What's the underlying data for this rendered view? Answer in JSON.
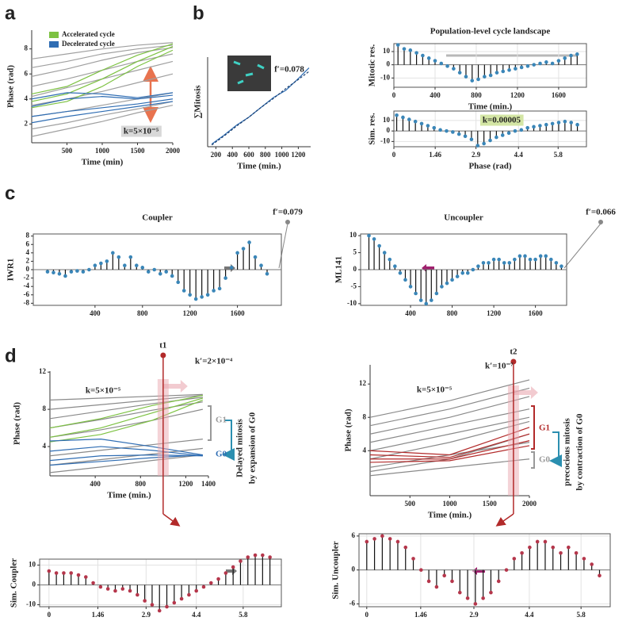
{
  "chart_data": [
    {
      "type": "line",
      "panel": "a",
      "xlabel": "Time (min)",
      "ylabel": "Phase (rad)",
      "xlim": [
        0,
        2000
      ],
      "ylim": [
        0.5,
        9.5
      ],
      "xticks": [
        500,
        1000,
        1500,
        2000
      ],
      "yticks": [
        2,
        4,
        6,
        8
      ],
      "legend": "top-left",
      "annotations": [
        "k=5×10⁻⁵"
      ],
      "x": [
        0,
        500,
        1000,
        1500,
        2000
      ],
      "series": [
        {
          "color": "#a0a0a0",
          "values": [
            7.2,
            7.6,
            8.0,
            8.3,
            8.5
          ]
        },
        {
          "color": "#a0a0a0",
          "values": [
            6.5,
            7.0,
            7.6,
            8.0,
            8.3
          ]
        },
        {
          "color": "#a0a0a0",
          "values": [
            5.8,
            6.4,
            7.1,
            7.7,
            8.1
          ]
        },
        {
          "color": "#a0a0a0",
          "values": [
            5,
            5.6,
            6.3,
            7,
            7.6
          ]
        },
        {
          "color": "#a0a0a0",
          "values": [
            4.2,
            4.9,
            5.6,
            6.3,
            7
          ]
        },
        {
          "color": "#a0a0a0",
          "values": [
            3.5,
            4,
            4.6,
            5.3,
            6
          ]
        },
        {
          "color": "#a0a0a0",
          "values": [
            2.6,
            3,
            3.5,
            4,
            4.5
          ]
        },
        {
          "color": "#a0a0a0",
          "values": [
            1.6,
            2.1,
            2.7,
            3.2,
            3.8
          ]
        },
        {
          "color": "#a0a0a0",
          "values": [
            1.0,
            1.6,
            2.2,
            2.9,
            3.5
          ]
        },
        {
          "name": "Accelerated cycle",
          "color": "#7dc242",
          "values": [
            3.8,
            4.4,
            5.6,
            7,
            8.2
          ]
        },
        {
          "color": "#7dc242",
          "values": [
            3.3,
            3.8,
            5,
            6.6,
            7.9
          ]
        },
        {
          "color": "#7dc242",
          "values": [
            4.4,
            5,
            6.3,
            7.5,
            8.4
          ]
        },
        {
          "name": "Decelerated cycle",
          "color": "#2f6db3",
          "values": [
            3.4,
            4,
            4.2,
            4,
            4.3
          ]
        },
        {
          "color": "#2f6db3",
          "values": [
            2.6,
            3,
            3.3,
            3.6,
            4
          ]
        },
        {
          "color": "#2f6db3",
          "values": [
            2.1,
            2.6,
            3,
            3.4,
            3.8
          ]
        },
        {
          "color": "#2f6db3",
          "values": [
            4.0,
            4.5,
            4.4,
            4.1,
            4.5
          ]
        }
      ]
    },
    {
      "type": "line",
      "panel": "b",
      "xlabel": "Time (min.)",
      "ylabel": "∑Mitosis",
      "xlim": [
        100,
        1350
      ],
      "ylim": [
        0,
        1
      ],
      "xticks": [
        200,
        400,
        600,
        800,
        1000,
        1200
      ],
      "yticks": [],
      "annotations": [
        "f′=0.078"
      ],
      "x": [
        150,
        300,
        450,
        600,
        750,
        900,
        1050,
        1200,
        1330
      ],
      "series": [
        {
          "color": "#2f6db3",
          "values": [
            0.03,
            0.13,
            0.24,
            0.33,
            0.44,
            0.55,
            0.63,
            0.76,
            0.88
          ]
        },
        {
          "color": "#1a3e6e",
          "dash": true,
          "values": [
            0.02,
            0.12,
            0.23,
            0.33,
            0.44,
            0.54,
            0.65,
            0.75,
            0.84
          ]
        }
      ]
    },
    {
      "type": "stem",
      "title": "Population-level cycle landscape",
      "xlabel": "Time (min.)",
      "ylabel": "Mitotic res.",
      "xlim": [
        0,
        1870
      ],
      "ylim": [
        -17,
        16
      ],
      "xticks": [
        0,
        400,
        800,
        1200,
        1600
      ],
      "yticks": [
        -10,
        0,
        10
      ],
      "grid": true,
      "color": "#3a86b8",
      "x": [
        40,
        100,
        160,
        220,
        280,
        340,
        400,
        460,
        520,
        580,
        640,
        700,
        760,
        820,
        880,
        940,
        1000,
        1060,
        1120,
        1180,
        1240,
        1300,
        1360,
        1420,
        1480,
        1540,
        1600,
        1660,
        1720,
        1780
      ],
      "values": [
        15,
        12,
        11,
        9,
        7,
        5,
        3,
        1,
        -1,
        -3,
        -6,
        -9,
        -12,
        -11,
        -9,
        -8,
        -6,
        -5,
        -4,
        -3,
        -2,
        -1,
        0,
        1,
        2,
        1,
        3,
        5,
        7,
        8
      ]
    },
    {
      "type": "stem",
      "xlabel": "Phase (rad)",
      "ylabel": "Sim. res.",
      "xlim": [
        0,
        6.8
      ],
      "ylim": [
        -15,
        19
      ],
      "xticks": [
        0,
        1.46,
        2.9,
        4.4,
        5.8
      ],
      "yticks": [
        -10,
        0,
        10
      ],
      "grid": true,
      "color": "#3a86b8",
      "annotations": [
        "k=0.00005"
      ],
      "x": [
        0.1,
        0.32,
        0.54,
        0.76,
        0.98,
        1.2,
        1.42,
        1.64,
        1.86,
        2.08,
        2.3,
        2.52,
        2.74,
        2.96,
        3.18,
        3.4,
        3.62,
        3.84,
        4.06,
        4.28,
        4.5,
        4.72,
        4.94,
        5.16,
        5.38,
        5.6,
        5.82,
        6.04,
        6.26,
        6.48
      ],
      "values": [
        15,
        13,
        11,
        9,
        7,
        5,
        3,
        1,
        0,
        -1,
        -3,
        -5,
        -8,
        -14,
        -12,
        -9,
        -6,
        -4,
        -2,
        0,
        1,
        3,
        4,
        5,
        6,
        7,
        8,
        9,
        8,
        6
      ]
    },
    {
      "type": "stem",
      "panel": "c",
      "title": "Coupler",
      "ylabel": "IWR1",
      "xlim": [
        -120,
        1970
      ],
      "ylim": [
        -8.5,
        8.5
      ],
      "xticks": [
        400,
        800,
        1200,
        1600
      ],
      "yticks": [
        -8,
        -6,
        -4,
        -2,
        0,
        2,
        4,
        6,
        8
      ],
      "color": "#3a86b8",
      "annotations": [
        "f′=0.079"
      ],
      "x": [
        0,
        50,
        100,
        150,
        200,
        250,
        300,
        350,
        400,
        450,
        500,
        550,
        600,
        650,
        700,
        750,
        800,
        850,
        900,
        950,
        1000,
        1050,
        1100,
        1150,
        1200,
        1250,
        1300,
        1350,
        1400,
        1450,
        1500,
        1550,
        1600,
        1650,
        1700,
        1750,
        1800,
        1850
      ],
      "values": [
        -0.5,
        -0.7,
        -1,
        -1.5,
        -0.5,
        -0.3,
        -0.5,
        0,
        1,
        1.5,
        2,
        4,
        3,
        1,
        3,
        1,
        0.5,
        -0.5,
        0,
        -1,
        -0.5,
        -1.5,
        -3,
        -5,
        -6,
        -7,
        -6.5,
        -6,
        -5,
        -4.5,
        -2,
        0.5,
        4,
        5,
        6.5,
        3,
        1,
        -1
      ]
    },
    {
      "type": "stem",
      "title": "Uncoupler",
      "ylabel": "ML141",
      "xlim": [
        -80,
        1900
      ],
      "ylim": [
        -10.5,
        10.5
      ],
      "xticks": [
        400,
        800,
        1200,
        1600
      ],
      "yticks": [
        -10,
        -5,
        0,
        5,
        10
      ],
      "color": "#3a86b8",
      "annotations": [
        "f′=0.066"
      ],
      "x": [
        0,
        50,
        100,
        150,
        200,
        250,
        300,
        350,
        400,
        450,
        500,
        550,
        600,
        650,
        700,
        750,
        800,
        850,
        900,
        950,
        1000,
        1050,
        1100,
        1150,
        1200,
        1250,
        1300,
        1350,
        1400,
        1450,
        1500,
        1550,
        1600,
        1650,
        1700,
        1750,
        1800,
        1850
      ],
      "values": [
        10,
        9,
        7,
        5,
        3,
        1,
        -1,
        -3,
        -5,
        -7,
        -9,
        -10,
        -9,
        -7,
        -5,
        -4,
        -3,
        -2,
        -1,
        -1,
        0,
        1,
        2,
        2,
        3,
        3,
        2,
        2,
        3,
        4,
        4,
        3,
        3,
        4,
        4,
        3,
        2,
        1
      ]
    },
    {
      "type": "line",
      "panel": "d",
      "xlabel": "Time (min.)",
      "ylabel": "Phase (rad)",
      "xlim": [
        0,
        1400
      ],
      "ylim": [
        0.85,
        12.1
      ],
      "xticks": [
        400,
        800,
        1200,
        1400
      ],
      "yticks": [
        4,
        8,
        12
      ],
      "annotations": [
        "k=5×10⁻⁵",
        "k′=2×10⁻⁴",
        "G1",
        "G0"
      ],
      "note": [
        "Delayed mitosis",
        "by expansion of G0"
      ],
      "markers": [
        {
          "label": "t1",
          "x": 1000
        }
      ],
      "x": [
        0,
        450,
        900,
        1350
      ],
      "series": [
        {
          "color": "#8a8a8a",
          "values": [
            9,
            9.2,
            9.4,
            9.6
          ]
        },
        {
          "color": "#8a8a8a",
          "values": [
            8,
            8.5,
            9,
            9.5
          ]
        },
        {
          "color": "#8a8a8a",
          "values": [
            7,
            7.8,
            8.6,
            9.3
          ]
        },
        {
          "color": "#8a8a8a",
          "values": [
            6,
            6.9,
            7.9,
            8.8
          ]
        },
        {
          "color": "#8a8a8a",
          "values": [
            5,
            5.8,
            6.8,
            8
          ]
        },
        {
          "color": "#8a8a8a",
          "values": [
            3,
            3.6,
            4.2,
            4.8
          ]
        },
        {
          "color": "#8a8a8a",
          "values": [
            2,
            2.6,
            3.2,
            3.8
          ]
        },
        {
          "color": "#8a8a8a",
          "values": [
            1.2,
            1.8,
            2.5,
            3.1
          ]
        },
        {
          "color": "#7dc242",
          "values": [
            5,
            6,
            7.6,
            9.2
          ]
        },
        {
          "color": "#7dc242",
          "values": [
            6,
            7,
            8.4,
            9.5
          ]
        },
        {
          "color": "#7dc242",
          "values": [
            4.5,
            5.3,
            6.8,
            9
          ]
        },
        {
          "color": "#2f6db3",
          "values": [
            4.6,
            4.8,
            4,
            3.1
          ]
        },
        {
          "color": "#2f6db3",
          "values": [
            3.5,
            4,
            3.6,
            3
          ]
        },
        {
          "color": "#2f6db3",
          "values": [
            2.5,
            3,
            3.1,
            3
          ]
        },
        {
          "color": "#2f6db3",
          "values": [
            2,
            2.4,
            2.8,
            3.1
          ]
        }
      ]
    },
    {
      "type": "line",
      "xlabel": "Time (min.)",
      "ylabel": "Phase (rad)",
      "xlim": [
        0,
        2000
      ],
      "ylim": [
        -1.4,
        14.3
      ],
      "xticks": [
        500,
        1000,
        1500,
        2000
      ],
      "yticks": [
        4,
        8,
        12
      ],
      "annotations": [
        "k=5×10⁻⁵",
        "k′=10⁻⁷",
        "G1",
        "G0"
      ],
      "note": [
        "precocious mitosis",
        "by contraction of G0"
      ],
      "markers": [
        {
          "label": "t2",
          "x": 1800
        }
      ],
      "x": [
        0,
        1000,
        2000
      ],
      "series": [
        {
          "color": "#8a8a8a",
          "values": [
            8,
            10,
            12.5
          ]
        },
        {
          "color": "#8a8a8a",
          "values": [
            7,
            9,
            11.5
          ]
        },
        {
          "color": "#8a8a8a",
          "values": [
            6,
            8,
            10.5
          ]
        },
        {
          "color": "#8a8a8a",
          "values": [
            5,
            7,
            9
          ]
        },
        {
          "color": "#8a8a8a",
          "values": [
            4,
            6,
            8
          ]
        },
        {
          "color": "#8a8a8a",
          "values": [
            3,
            5,
            7.5
          ]
        },
        {
          "color": "#8a8a8a",
          "values": [
            2,
            3.5,
            5
          ]
        },
        {
          "color": "#8a8a8a",
          "values": [
            1,
            2,
            3
          ]
        },
        {
          "color": "#8a8a8a",
          "values": [
            1.5,
            3,
            6
          ]
        },
        {
          "color": "#b22a2a",
          "values": [
            3.5,
            3.2,
            6
          ]
        },
        {
          "color": "#b22a2a",
          "values": [
            3,
            3,
            5.2
          ]
        },
        {
          "color": "#b22a2a",
          "values": [
            2.6,
            2.8,
            4.6
          ]
        },
        {
          "color": "#b22a2a",
          "values": [
            4,
            3.5,
            6.8
          ]
        }
      ]
    },
    {
      "type": "stem",
      "xlabel": "Phase (rad)",
      "ylabel": "Sim. Coupler",
      "xlim": [
        -0.28,
        6.94
      ],
      "ylim": [
        -11,
        13
      ],
      "xticks": [
        0,
        1.46,
        2.9,
        4.4,
        5.8
      ],
      "yticks": [
        -10,
        0,
        10
      ],
      "grid": true,
      "color": "#b5364b",
      "x": [
        0,
        0.22,
        0.44,
        0.66,
        0.88,
        1.1,
        1.32,
        1.54,
        1.76,
        1.98,
        2.2,
        2.42,
        2.64,
        2.86,
        3.08,
        3.3,
        3.52,
        3.74,
        3.96,
        4.18,
        4.4,
        4.62,
        4.84,
        5.06,
        5.28,
        5.5,
        5.72,
        5.94,
        6.16,
        6.38,
        6.6
      ],
      "values": [
        7,
        6,
        6,
        6,
        5,
        4,
        1,
        -1,
        -2,
        -3,
        -2,
        -3,
        -5,
        -8,
        -10,
        -13,
        -11,
        -9,
        -7,
        -5,
        -3,
        -1,
        1,
        3,
        6,
        9,
        12,
        14,
        15,
        15,
        14
      ]
    },
    {
      "type": "stem",
      "xlabel": "Phase (rad)",
      "ylabel": "Sim. Uncoupler",
      "xlim": [
        -0.21,
        6.59
      ],
      "ylim": [
        -6.5,
        6.4
      ],
      "xticks": [
        0,
        1.46,
        2.9,
        4.4,
        5.8
      ],
      "yticks": [
        -6,
        0,
        6
      ],
      "grid": true,
      "color": "#b5364b",
      "x": [
        0,
        0.21,
        0.42,
        0.63,
        0.84,
        1.05,
        1.26,
        1.47,
        1.68,
        1.89,
        2.1,
        2.31,
        2.52,
        2.73,
        2.94,
        3.15,
        3.36,
        3.57,
        3.78,
        3.99,
        4.2,
        4.41,
        4.62,
        4.83,
        5.04,
        5.25,
        5.46,
        5.67,
        5.88,
        6.09,
        6.3
      ],
      "values": [
        5,
        5.5,
        6,
        5.5,
        5,
        4,
        2,
        0,
        -2,
        -3,
        -1,
        -2,
        -4,
        -5,
        -6,
        -5,
        -4,
        -2,
        0,
        2,
        3,
        4,
        5,
        5,
        4,
        3,
        4,
        3,
        2,
        1,
        -1
      ]
    }
  ]
}
